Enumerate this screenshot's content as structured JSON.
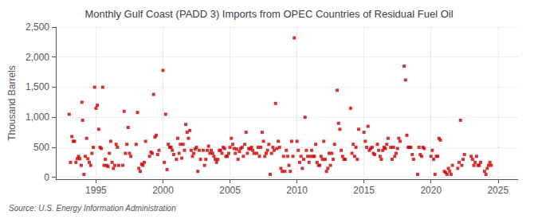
{
  "chart_data": {
    "type": "scatter",
    "title": "Monthly Gulf Coast (PADD 3) Imports from OPEC Countries of Residual Fuel Oil",
    "ylabel": "Thousand Barrels",
    "source": "Source: U.S. Energy Information Administration",
    "color": "#cc0000",
    "marker": "square",
    "grid": true,
    "xlim": [
      1992.0,
      2026.5
    ],
    "xticks": [
      1995,
      2000,
      2005,
      2010,
      2015,
      2020,
      2025
    ],
    "ylim": [
      -30,
      2500
    ],
    "yticks": [
      0,
      500,
      {
        "value": 1000,
        "label": "1,000"
      },
      {
        "value": 1500,
        "label": "1,500"
      },
      {
        "value": 2000,
        "label": "2,000"
      },
      {
        "value": 2500,
        "label": "2,500"
      }
    ],
    "x": [
      1993.0,
      1993.1,
      1993.2,
      1993.3,
      1993.4,
      1993.5,
      1993.6,
      1993.7,
      1993.8,
      1993.9,
      1993.95,
      1994.0,
      1994.1,
      1994.2,
      1994.3,
      1994.4,
      1994.5,
      1994.6,
      1994.7,
      1994.8,
      1994.9,
      1995.0,
      1995.1,
      1995.2,
      1995.3,
      1995.4,
      1995.5,
      1995.6,
      1995.7,
      1995.8,
      1995.9,
      1996.0,
      1996.1,
      1996.2,
      1996.3,
      1996.4,
      1996.5,
      1996.6,
      1996.7,
      1997.0,
      1997.1,
      1997.2,
      1997.3,
      1997.4,
      1997.5,
      1997.6,
      1998.0,
      1998.1,
      1998.2,
      1998.3,
      1998.4,
      1998.5,
      1998.6,
      1998.7,
      1999.0,
      1999.1,
      1999.2,
      1999.3,
      1999.4,
      1999.5,
      1999.6,
      1999.7,
      2000.0,
      2000.1,
      2000.2,
      2000.3,
      2000.4,
      2000.5,
      2000.6,
      2000.7,
      2000.8,
      2001.0,
      2001.1,
      2001.2,
      2001.3,
      2001.4,
      2001.5,
      2001.6,
      2001.7,
      2001.8,
      2001.9,
      2002.0,
      2002.1,
      2002.2,
      2002.3,
      2002.4,
      2002.5,
      2002.6,
      2002.7,
      2002.8,
      2003.0,
      2003.1,
      2003.2,
      2003.3,
      2003.4,
      2003.5,
      2003.6,
      2003.7,
      2003.8,
      2003.9,
      2004.0,
      2004.1,
      2004.2,
      2004.3,
      2004.4,
      2004.5,
      2004.6,
      2004.7,
      2004.8,
      2004.9,
      2005.0,
      2005.1,
      2005.2,
      2005.3,
      2005.4,
      2005.5,
      2005.6,
      2005.7,
      2005.8,
      2005.9,
      2006.0,
      2006.1,
      2006.2,
      2006.3,
      2006.4,
      2006.5,
      2006.6,
      2006.7,
      2006.8,
      2007.0,
      2007.1,
      2007.2,
      2007.3,
      2007.4,
      2007.5,
      2007.6,
      2007.7,
      2007.8,
      2007.9,
      2008.0,
      2008.1,
      2008.2,
      2008.3,
      2008.4,
      2008.5,
      2008.6,
      2008.7,
      2008.8,
      2008.9,
      2009.0,
      2009.1,
      2009.2,
      2009.3,
      2009.4,
      2009.5,
      2009.6,
      2009.7,
      2009.8,
      2010.0,
      2010.1,
      2010.2,
      2010.3,
      2010.4,
      2010.5,
      2010.6,
      2010.7,
      2010.8,
      2010.9,
      2011.0,
      2011.1,
      2011.2,
      2011.3,
      2011.4,
      2011.5,
      2011.6,
      2011.7,
      2011.8,
      2011.9,
      2012.0,
      2012.1,
      2012.2,
      2012.3,
      2012.4,
      2012.5,
      2012.6,
      2012.7,
      2012.8,
      2013.0,
      2013.1,
      2013.2,
      2013.3,
      2013.4,
      2013.5,
      2013.6,
      2014.0,
      2014.1,
      2014.2,
      2014.3,
      2014.4,
      2014.5,
      2014.6,
      2015.0,
      2015.1,
      2015.2,
      2015.3,
      2015.4,
      2015.5,
      2015.6,
      2015.7,
      2015.8,
      2016.0,
      2016.1,
      2016.2,
      2016.3,
      2016.4,
      2016.5,
      2016.6,
      2016.7,
      2016.8,
      2017.0,
      2017.1,
      2017.2,
      2017.3,
      2017.4,
      2017.5,
      2017.6,
      2017.7,
      2018.0,
      2018.1,
      2018.2,
      2018.3,
      2018.4,
      2018.5,
      2018.6,
      2018.7,
      2019.0,
      2019.1,
      2019.2,
      2019.3,
      2019.4,
      2019.5,
      2020.0,
      2020.1,
      2020.2,
      2020.3,
      2020.4,
      2020.5,
      2020.6,
      2020.7,
      2021.0,
      2021.1,
      2021.2,
      2021.3,
      2021.4,
      2021.5,
      2021.6,
      2022.0,
      2022.1,
      2022.2,
      2022.3,
      2022.4,
      2022.5,
      2023.0,
      2023.1,
      2023.2,
      2023.3,
      2023.4,
      2023.5,
      2023.6,
      2023.7,
      2024.0,
      2024.1,
      2024.2,
      2024.3,
      2024.4,
      2024.5
    ],
    "values": [
      1050,
      250,
      680,
      600,
      600,
      250,
      310,
      350,
      310,
      200,
      1250,
      950,
      50,
      350,
      650,
      310,
      250,
      200,
      400,
      500,
      1500,
      1150,
      1200,
      800,
      500,
      480,
      1500,
      200,
      300,
      200,
      180,
      400,
      600,
      250,
      150,
      200,
      550,
      500,
      200,
      200,
      1100,
      400,
      550,
      830,
      400,
      350,
      550,
      1080,
      150,
      100,
      220,
      200,
      250,
      600,
      350,
      420,
      400,
      1380,
      670,
      700,
      380,
      450,
      1780,
      250,
      1050,
      130,
      550,
      500,
      500,
      450,
      380,
      300,
      650,
      400,
      550,
      320,
      550,
      450,
      880,
      750,
      650,
      780,
      450,
      350,
      400,
      470,
      500,
      100,
      450,
      300,
      450,
      200,
      300,
      450,
      520,
      400,
      450,
      400,
      350,
      300,
      250,
      300,
      450,
      450,
      400,
      500,
      480,
      350,
      350,
      400,
      500,
      650,
      550,
      480,
      400,
      470,
      300,
      430,
      480,
      500,
      350,
      550,
      750,
      400,
      480,
      470,
      500,
      450,
      400,
      400,
      500,
      350,
      500,
      750,
      600,
      350,
      400,
      450,
      550,
      50,
      400,
      500,
      450,
      1230,
      480,
      600,
      500,
      150,
      100,
      350,
      100,
      450,
      350,
      200,
      100,
      600,
      350,
      2320,
      600,
      450,
      250,
      350,
      150,
      300,
      1000,
      450,
      350,
      250,
      350,
      450,
      350,
      350,
      550,
      250,
      200,
      200,
      350,
      300,
      600,
      300,
      100,
      150,
      400,
      200,
      400,
      300,
      550,
      1450,
      900,
      800,
      450,
      350,
      300,
      300,
      1150,
      400,
      550,
      350,
      500,
      300,
      800,
      750,
      600,
      500,
      850,
      450,
      480,
      500,
      400,
      380,
      550,
      450,
      350,
      300,
      450,
      500,
      480,
      550,
      650,
      500,
      300,
      500,
      350,
      400,
      480,
      650,
      600,
      1850,
      1620,
      700,
      500,
      500,
      500,
      380,
      300,
      50,
      500,
      380,
      350,
      500,
      480,
      350,
      450,
      300,
      50,
      350,
      350,
      650,
      620,
      100,
      80,
      50,
      150,
      100,
      50,
      200,
      150,
      250,
      950,
      200,
      300,
      380,
      350,
      300,
      200,
      250,
      350,
      200,
      200,
      250,
      100,
      50,
      150,
      200,
      250,
      200
    ]
  }
}
